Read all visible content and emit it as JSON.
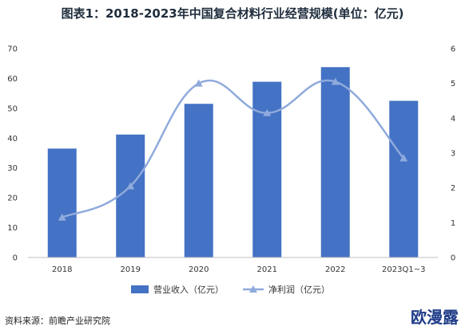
{
  "page": {
    "title": "图表1：2018-2023年中国复合材料行业经营规模(单位：亿元)",
    "source": "资料来源：前瞻产业研究院",
    "sticker": "欧漫露"
  },
  "chart_data": {
    "type": "bar",
    "title": "图表1：2018-2023年中国复合材料行业经营规模(单位：亿元)",
    "categories": [
      "2018",
      "2019",
      "2020",
      "2021",
      "2022",
      "2023Q1~3"
    ],
    "series": [
      {
        "name": "营业收入（亿元）",
        "type": "bar",
        "axis": "left",
        "color": "#4472c4",
        "values": [
          36.5,
          41.2,
          51.5,
          58.9,
          63.8,
          52.5
        ]
      },
      {
        "name": "净利润（亿元）",
        "type": "line",
        "axis": "right",
        "color": "#8faadc",
        "values": [
          1.15,
          2.05,
          5.0,
          4.15,
          5.05,
          2.85
        ]
      }
    ],
    "y_left": {
      "min": 0,
      "max": 70,
      "ticks": [
        0,
        10,
        20,
        30,
        40,
        50,
        60,
        70
      ]
    },
    "y_right": {
      "min": 0,
      "max": 6,
      "ticks": [
        0,
        1,
        2,
        3,
        4,
        5,
        6
      ]
    },
    "grid": false,
    "legend_position": "bottom"
  }
}
